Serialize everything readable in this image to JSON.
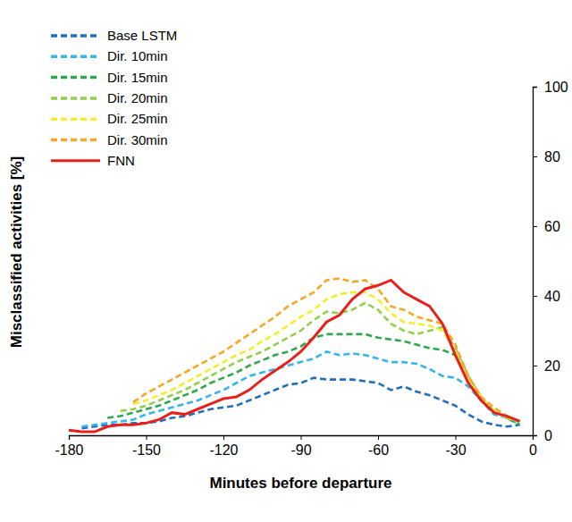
{
  "chart_data": {
    "type": "line",
    "xlabel": "Minutes before departure",
    "ylabel": "Misclassified  activities [%]",
    "x": [
      -180,
      -175,
      -170,
      -165,
      -160,
      -155,
      -150,
      -145,
      -140,
      -135,
      -130,
      -125,
      -120,
      -115,
      -110,
      -105,
      -100,
      -95,
      -90,
      -85,
      -80,
      -75,
      -70,
      -65,
      -60,
      -55,
      -50,
      -45,
      -40,
      -35,
      -30,
      -25,
      -20,
      -15,
      -10,
      -5
    ],
    "xlim": [
      -180,
      0
    ],
    "xticks": [
      -180,
      -150,
      -120,
      -90,
      -60,
      -30,
      0
    ],
    "ylim": [
      0,
      100
    ],
    "yticks": [
      0,
      20,
      40,
      60,
      80,
      100
    ],
    "grid": false,
    "legend": "top-left",
    "series": [
      {
        "name": "Base LSTM",
        "color": "#1f6fbf",
        "line_style": "dashed",
        "values": [
          null,
          2,
          2.5,
          3,
          3,
          3.5,
          3.5,
          4,
          5,
          5.5,
          6.5,
          7.5,
          8,
          8.5,
          10,
          11.5,
          13,
          14.5,
          15,
          16.5,
          16,
          16,
          16,
          15.5,
          15,
          13,
          14,
          12.5,
          11.5,
          10,
          8.5,
          6,
          4,
          3,
          2.5,
          3
        ]
      },
      {
        "name": "Dir. 10min",
        "color": "#35b6ea",
        "line_style": "dashed",
        "values": [
          null,
          2.5,
          3,
          3.5,
          4,
          4.5,
          6,
          7,
          8,
          9,
          10,
          11.5,
          13,
          15,
          17,
          18,
          19,
          20,
          21,
          22,
          24,
          23,
          23.5,
          23,
          22,
          21,
          21,
          20.5,
          19,
          17,
          16.5,
          14,
          10,
          6,
          5,
          3
        ]
      },
      {
        "name": "Dir. 15min",
        "color": "#2ea84a",
        "line_style": "dashed",
        "values": [
          null,
          null,
          null,
          5,
          5.5,
          6.5,
          7.5,
          8.5,
          10,
          11.5,
          13,
          15,
          16.5,
          18,
          20,
          21.5,
          23,
          24,
          25.5,
          28,
          29,
          29,
          29,
          29,
          28,
          27.5,
          27,
          26,
          25,
          24.5,
          23,
          16,
          10,
          7,
          5,
          3
        ]
      },
      {
        "name": "Dir. 20min",
        "color": "#92cf4c",
        "line_style": "dashed",
        "values": [
          null,
          null,
          null,
          null,
          7,
          7.5,
          8.5,
          10,
          11.5,
          13,
          15,
          17,
          19,
          21,
          22.5,
          24,
          26,
          28,
          30,
          33,
          35.5,
          35,
          36,
          38,
          36,
          32,
          30,
          29,
          30,
          31,
          25,
          17,
          11,
          7,
          5,
          4
        ]
      },
      {
        "name": "Dir. 25min",
        "color": "#f2ee2e",
        "line_style": "dashed",
        "values": [
          null,
          null,
          null,
          null,
          null,
          9,
          10,
          11.5,
          13,
          15,
          17,
          19,
          21,
          23,
          24.5,
          27,
          29,
          31.5,
          34,
          36,
          39,
          40.5,
          41,
          41,
          39,
          35,
          32.5,
          32,
          31.5,
          30,
          24,
          16,
          11,
          7,
          5,
          4
        ]
      },
      {
        "name": "Dir. 30min",
        "color": "#f5a623",
        "line_style": "dashed",
        "values": [
          null,
          null,
          null,
          null,
          null,
          9.5,
          12,
          14,
          16,
          18,
          20,
          22,
          24,
          26.5,
          29,
          31.5,
          34,
          37,
          39,
          41,
          44.5,
          45,
          44,
          44.5,
          42,
          37,
          36,
          34,
          33,
          32,
          26,
          17,
          11,
          8,
          5.5,
          4
        ]
      },
      {
        "name": "FNN",
        "color": "#e8201c",
        "line_style": "solid",
        "values": [
          1.5,
          1,
          1,
          2.5,
          3,
          3,
          3.5,
          4.5,
          6.5,
          6,
          7.5,
          9,
          10.5,
          11,
          13,
          16,
          18.5,
          21,
          24,
          28,
          32.5,
          34.5,
          39,
          42,
          43,
          44.5,
          41,
          39,
          37,
          32,
          23,
          15,
          10,
          6.5,
          5.5,
          4
        ]
      }
    ]
  }
}
